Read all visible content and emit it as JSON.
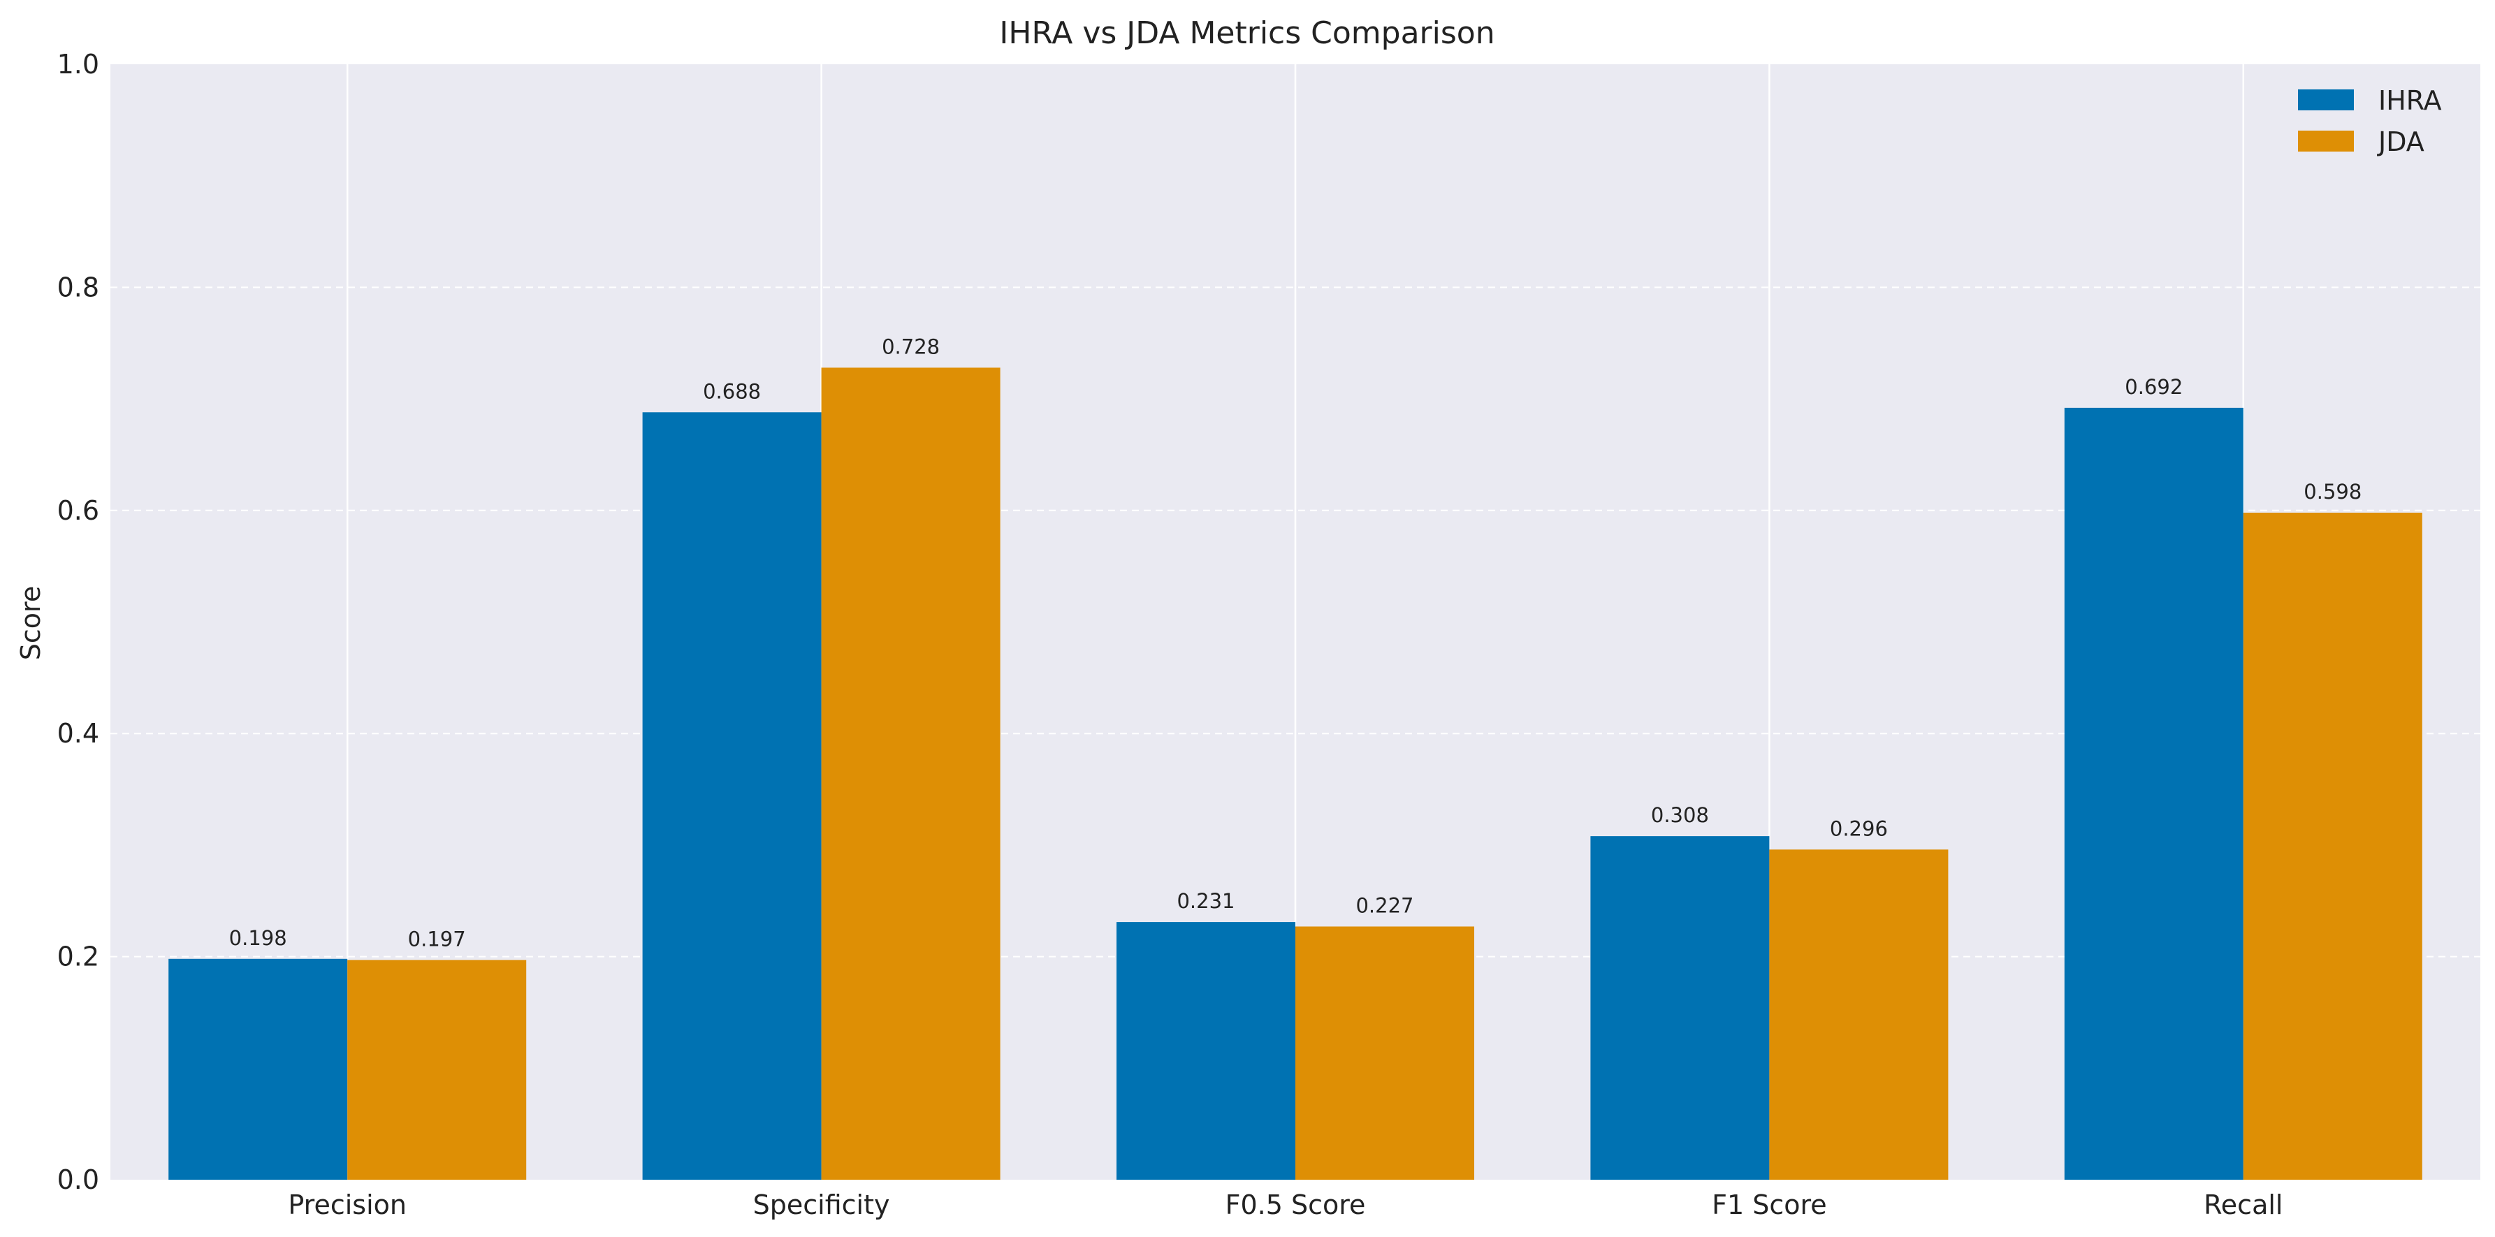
{
  "chart_data": {
    "type": "bar",
    "title": "IHRA vs JDA Metrics Comparison",
    "xlabel": "",
    "ylabel": "Score",
    "categories": [
      "Precision",
      "Specificity",
      "F0.5 Score",
      "F1 Score",
      "Recall"
    ],
    "series": [
      {
        "name": "IHRA",
        "values": [
          0.198,
          0.688,
          0.231,
          0.308,
          0.692
        ],
        "labels": [
          "0.198",
          "0.688",
          "0.231",
          "0.308",
          "0.692"
        ],
        "color": "#0072B2"
      },
      {
        "name": "JDA",
        "values": [
          0.197,
          0.728,
          0.227,
          0.296,
          0.598
        ],
        "labels": [
          "0.197",
          "0.728",
          "0.227",
          "0.296",
          "0.598"
        ],
        "color": "#DE8F05"
      }
    ],
    "ylim": [
      0,
      1.0
    ],
    "yticks": [
      "0.0",
      "0.2",
      "0.4",
      "0.6",
      "0.8",
      "1.0"
    ],
    "grid": true,
    "legend_position": "top-right",
    "background_color": "#EAEAF2"
  }
}
